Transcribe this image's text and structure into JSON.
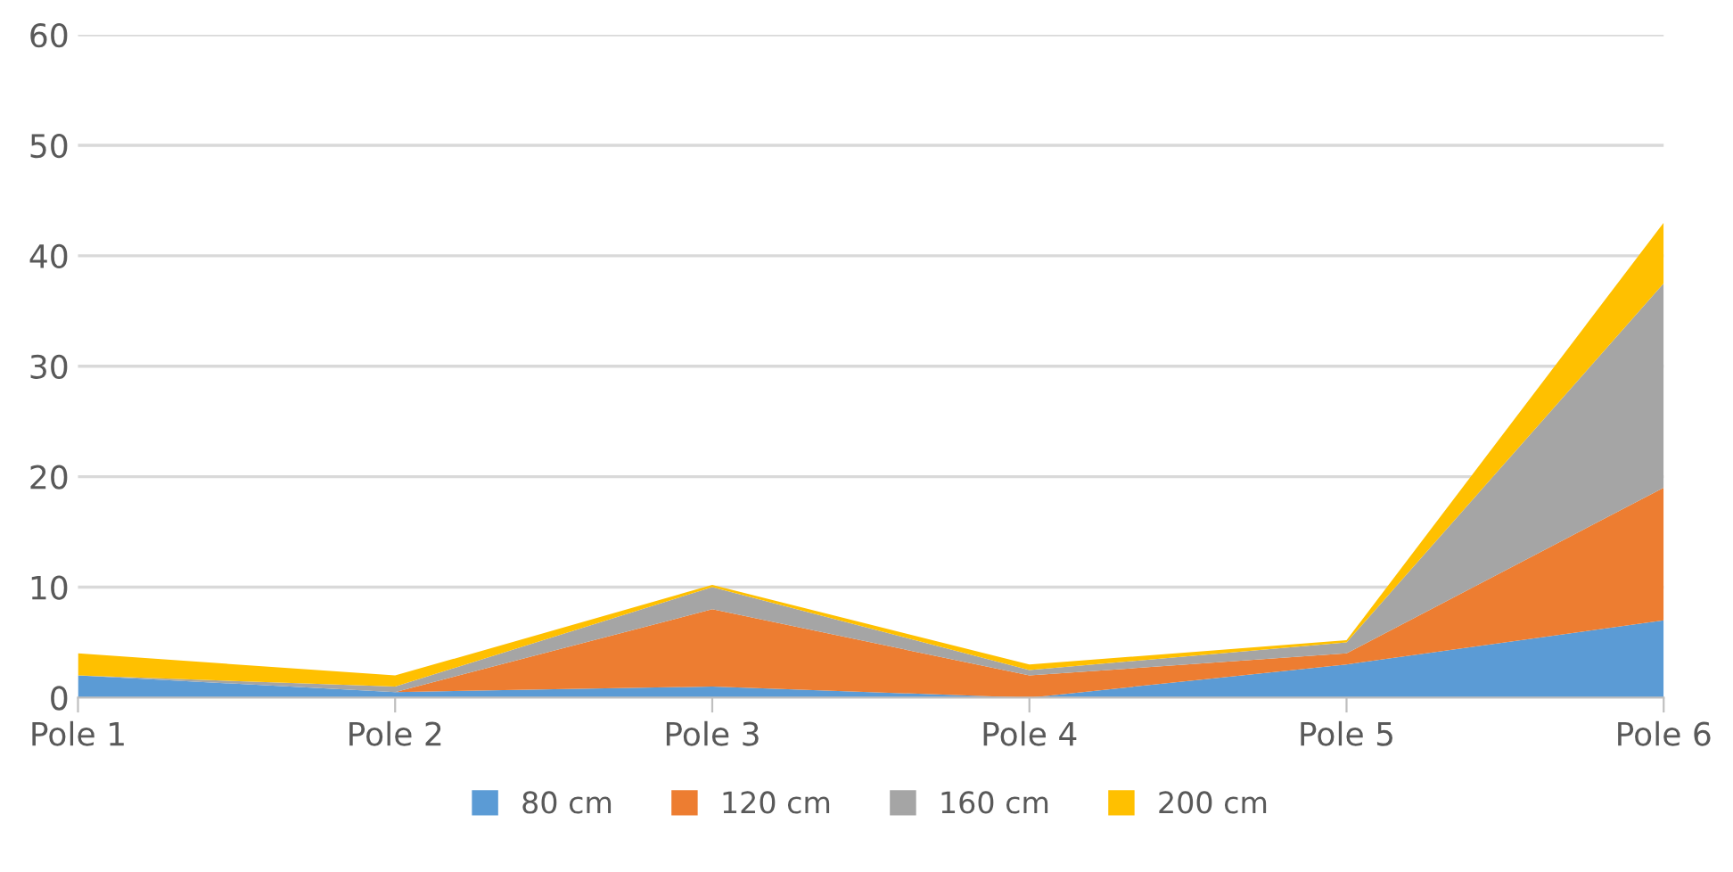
{
  "chart_data": {
    "type": "area",
    "stacked": true,
    "categories": [
      "Pole 1",
      "Pole 2",
      "Pole 3",
      "Pole 4",
      "Pole 5",
      "Pole 6"
    ],
    "series": [
      {
        "name": "80 cm",
        "color": "#5b9bd5",
        "values": [
          2,
          0.5,
          1,
          0,
          3,
          7
        ]
      },
      {
        "name": "120 cm",
        "color": "#ed7d31",
        "values": [
          0,
          0,
          7,
          2,
          1,
          12
        ]
      },
      {
        "name": "160 cm",
        "color": "#a5a5a5",
        "values": [
          0,
          0.5,
          2,
          0.5,
          1,
          18.5
        ]
      },
      {
        "name": "200 cm",
        "color": "#ffc000",
        "values": [
          2,
          1,
          0.2,
          0.5,
          0.2,
          5.5
        ]
      }
    ],
    "ylim": [
      0,
      60
    ],
    "yticks": [
      0,
      10,
      20,
      30,
      40,
      50,
      60
    ],
    "grid": "y",
    "legend": "bottom"
  }
}
